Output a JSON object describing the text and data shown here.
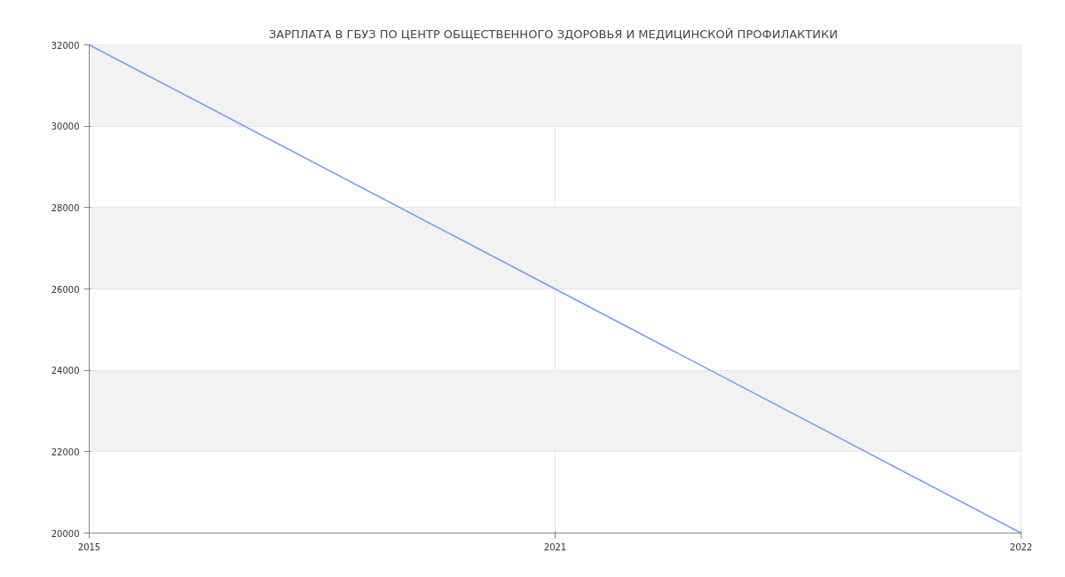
{
  "chart_data": {
    "type": "line",
    "title": "ЗАРПЛАТА В ГБУЗ ПО  ЦЕНТР ОБЩЕСТВЕННОГО ЗДОРОВЬЯ И МЕДИЦИНСКОЙ ПРОФИЛАКТИКИ",
    "categories": [
      "2015",
      "2021",
      "2022"
    ],
    "series": [
      {
        "color": "#6f9cf5",
        "values": [
          32000,
          26000,
          20000
        ]
      }
    ],
    "ylim": [
      20000,
      32000
    ],
    "yticks": [
      20000,
      22000,
      24000,
      26000,
      28000,
      30000,
      32000
    ],
    "grid": true,
    "marker": "none",
    "line_style": "solid"
  }
}
